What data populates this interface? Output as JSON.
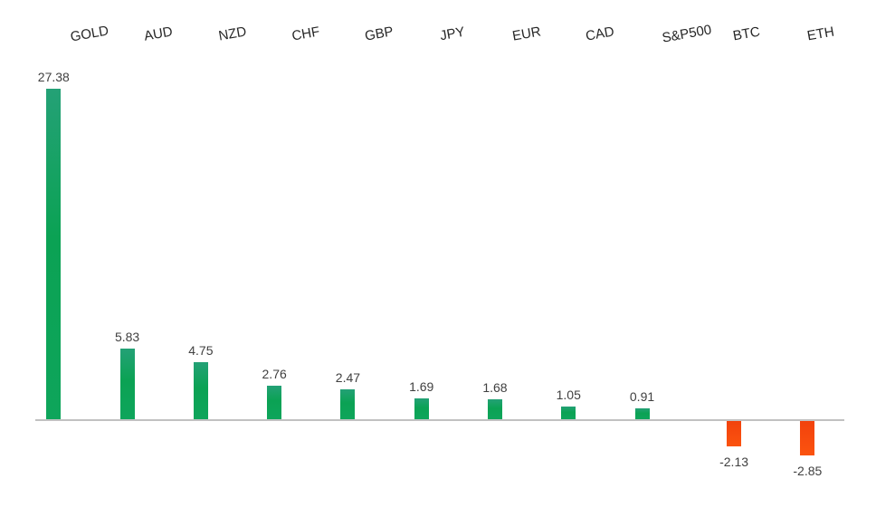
{
  "chart_data": {
    "type": "bar",
    "title": "",
    "xlabel": "",
    "ylabel": "",
    "categories": [
      "GOLD",
      "AUD",
      "NZD",
      "CHF",
      "GBP",
      "JPY",
      "EUR",
      "CAD",
      "S&P500",
      "BTC",
      "ETH"
    ],
    "values": [
      27.38,
      5.83,
      4.75,
      2.76,
      2.47,
      1.69,
      1.68,
      1.05,
      0.91,
      -2.13,
      -2.85
    ],
    "data_labels": [
      "27.38",
      "5.83",
      "4.75",
      "2.76",
      "2.47",
      "1.69",
      "1.68",
      "1.05",
      "0.91",
      "-2.13",
      "-2.85"
    ],
    "baseline_value": 0,
    "ylim": [
      -4,
      28
    ],
    "grid": false,
    "legend": false,
    "category_labels_position": "top",
    "category_label_rotation_deg": -10,
    "colors": {
      "positive_bar": "#0ca255",
      "negative_bar": "#f8490d",
      "axis_line": "#c1c1c1",
      "value_label_text": "#404040",
      "category_label_text": "#262626",
      "background": "#ffffff"
    }
  }
}
